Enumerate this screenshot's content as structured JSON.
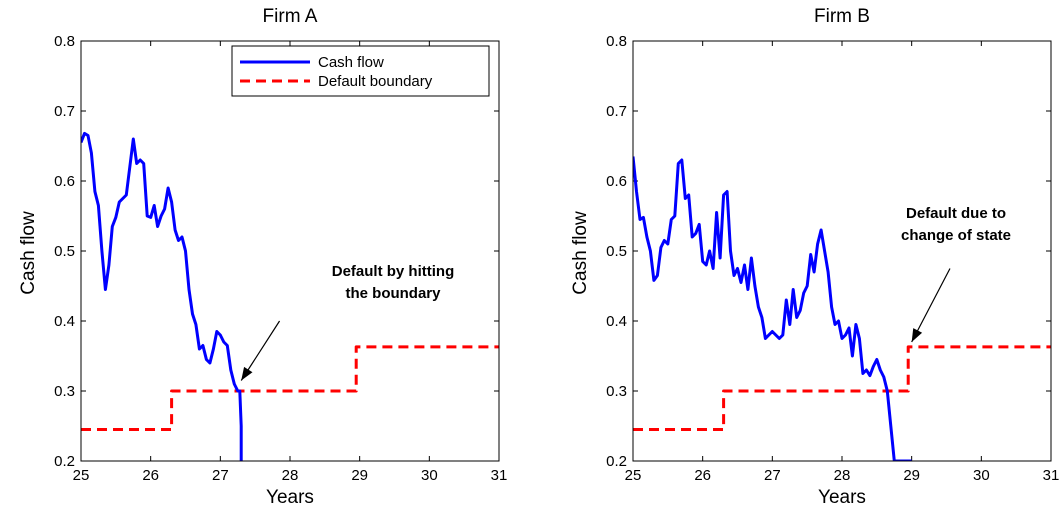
{
  "chart_data": [
    {
      "type": "line",
      "title": "Firm A",
      "xlabel": "Years",
      "ylabel": "Cash flow",
      "xlim": [
        25,
        31
      ],
      "ylim": [
        0.2,
        0.8
      ],
      "xticks": [
        "25",
        "26",
        "27",
        "28",
        "29",
        "30",
        "31"
      ],
      "yticks": [
        "0.2",
        "0.3",
        "0.4",
        "0.5",
        "0.6",
        "0.7",
        "0.8"
      ],
      "grid": false,
      "legend": {
        "placement": "top-right",
        "entries": [
          "Cash flow",
          "Default boundary"
        ]
      },
      "annotation": {
        "lines": [
          "Default by hitting",
          "the boundary"
        ],
        "arrow_from": [
          27.85,
          0.4
        ],
        "arrow_to": [
          27.3,
          0.315
        ]
      },
      "series": [
        {
          "name": "Cash flow",
          "color": "#0000ff",
          "style": "solid",
          "x": [
            25.0,
            25.05,
            25.1,
            25.15,
            25.2,
            25.25,
            25.3,
            25.35,
            25.4,
            25.45,
            25.5,
            25.55,
            25.6,
            25.65,
            25.7,
            25.75,
            25.8,
            25.85,
            25.9,
            25.95,
            26.0,
            26.05,
            26.1,
            26.15,
            26.2,
            26.25,
            26.3,
            26.35,
            26.4,
            26.45,
            26.5,
            26.55,
            26.6,
            26.65,
            26.7,
            26.75,
            26.8,
            26.85,
            26.9,
            26.95,
            27.0,
            27.05,
            27.1,
            27.15,
            27.2,
            27.25,
            27.28,
            27.3,
            27.3
          ],
          "y": [
            0.655,
            0.668,
            0.665,
            0.64,
            0.585,
            0.565,
            0.5,
            0.445,
            0.48,
            0.535,
            0.548,
            0.57,
            0.575,
            0.58,
            0.62,
            0.66,
            0.625,
            0.63,
            0.625,
            0.55,
            0.548,
            0.565,
            0.535,
            0.55,
            0.56,
            0.59,
            0.57,
            0.53,
            0.515,
            0.52,
            0.5,
            0.445,
            0.41,
            0.395,
            0.36,
            0.365,
            0.345,
            0.34,
            0.36,
            0.385,
            0.38,
            0.37,
            0.365,
            0.33,
            0.31,
            0.3,
            0.3,
            0.25,
            0.2
          ]
        },
        {
          "name": "Default boundary",
          "color": "#ff0000",
          "style": "dashed",
          "x": [
            25.0,
            26.3,
            26.3,
            28.95,
            28.95,
            31.0
          ],
          "y": [
            0.245,
            0.245,
            0.3,
            0.3,
            0.363,
            0.363
          ]
        }
      ]
    },
    {
      "type": "line",
      "title": "Firm B",
      "xlabel": "Years",
      "ylabel": "Cash flow",
      "xlim": [
        25,
        31
      ],
      "ylim": [
        0.2,
        0.8
      ],
      "xticks": [
        "25",
        "26",
        "27",
        "28",
        "29",
        "30",
        "31"
      ],
      "yticks": [
        "0.2",
        "0.3",
        "0.4",
        "0.5",
        "0.6",
        "0.7",
        "0.8"
      ],
      "grid": false,
      "annotation": {
        "lines": [
          "Default due to",
          "change of state"
        ],
        "arrow_from": [
          29.55,
          0.475
        ],
        "arrow_to": [
          29.0,
          0.37
        ]
      },
      "series": [
        {
          "name": "Cash flow",
          "color": "#0000ff",
          "style": "solid",
          "x": [
            25.0,
            25.05,
            25.1,
            25.15,
            25.2,
            25.25,
            25.3,
            25.35,
            25.4,
            25.45,
            25.5,
            25.55,
            25.6,
            25.65,
            25.7,
            25.75,
            25.8,
            25.85,
            25.9,
            25.95,
            26.0,
            26.05,
            26.1,
            26.15,
            26.2,
            26.25,
            26.3,
            26.35,
            26.4,
            26.45,
            26.5,
            26.55,
            26.6,
            26.65,
            26.7,
            26.75,
            26.8,
            26.85,
            26.9,
            26.95,
            27.0,
            27.05,
            27.1,
            27.15,
            27.2,
            27.25,
            27.3,
            27.35,
            27.4,
            27.45,
            27.5,
            27.55,
            27.6,
            27.65,
            27.7,
            27.75,
            27.8,
            27.85,
            27.9,
            27.95,
            28.0,
            28.05,
            28.1,
            28.15,
            28.2,
            28.25,
            28.3,
            28.35,
            28.4,
            28.45,
            28.5,
            28.55,
            28.6,
            28.65,
            28.7,
            28.75,
            28.8,
            28.85,
            28.9,
            28.95,
            28.98,
            29.0,
            29.0
          ],
          "y": [
            0.635,
            0.585,
            0.545,
            0.548,
            0.52,
            0.5,
            0.458,
            0.465,
            0.505,
            0.515,
            0.51,
            0.545,
            0.55,
            0.625,
            0.63,
            0.575,
            0.58,
            0.52,
            0.525,
            0.538,
            0.485,
            0.48,
            0.5,
            0.475,
            0.555,
            0.49,
            0.58,
            0.585,
            0.5,
            0.465,
            0.475,
            0.455,
            0.48,
            0.445,
            0.49,
            0.45,
            0.42,
            0.405,
            0.375,
            0.38,
            0.385,
            0.38,
            0.375,
            0.38,
            0.43,
            0.395,
            0.445,
            0.405,
            0.415,
            0.44,
            0.45,
            0.495,
            0.47,
            0.51,
            0.53,
            0.5,
            0.47,
            0.42,
            0.395,
            0.4,
            0.375,
            0.38,
            0.39,
            0.35,
            0.395,
            0.375,
            0.325,
            0.33,
            0.322,
            0.335,
            0.345,
            0.33,
            0.32,
            0.3,
            0.25,
            0.2,
            0.2,
            0.2,
            0.2,
            0.2,
            0.2,
            0.2,
            0.2
          ]
        },
        {
          "name": "Default boundary",
          "color": "#ff0000",
          "style": "dashed",
          "x": [
            25.0,
            26.3,
            26.3,
            28.95,
            28.95,
            31.0
          ],
          "y": [
            0.245,
            0.245,
            0.3,
            0.3,
            0.363,
            0.363
          ]
        }
      ]
    }
  ]
}
